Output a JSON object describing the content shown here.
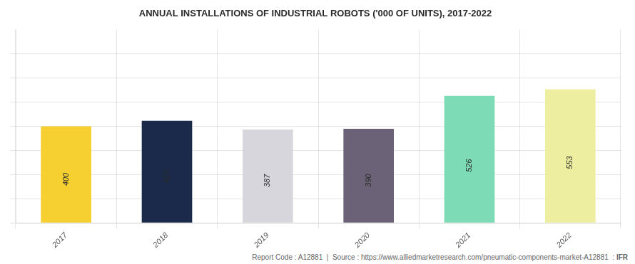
{
  "chart_data": {
    "type": "bar",
    "title": "ANNUAL INSTALLATIONS OF INDUSTRIAL ROBOTS ('000 OF UNITS), 2017-2022",
    "categories": [
      "2017",
      "2018",
      "2019",
      "2020",
      "2021",
      "2022"
    ],
    "values": [
      400,
      423,
      387,
      390,
      526,
      553
    ],
    "colors": [
      "#F5D030",
      "#1B2A4A",
      "#D6D6DC",
      "#6B6278",
      "#7DDBB5",
      "#EEEEA0"
    ],
    "ylim": [
      0,
      800
    ],
    "yticks": [
      0,
      100,
      200,
      300,
      400,
      500,
      600,
      700
    ],
    "grid": true,
    "tick_labels": "x",
    "data_labels": true,
    "annotations": [
      "Report Code : A12881  |  Source : https://www.alliedmarketresearch.com/pneumatic-components-market-A12881  : ",
      "IFR"
    ]
  }
}
